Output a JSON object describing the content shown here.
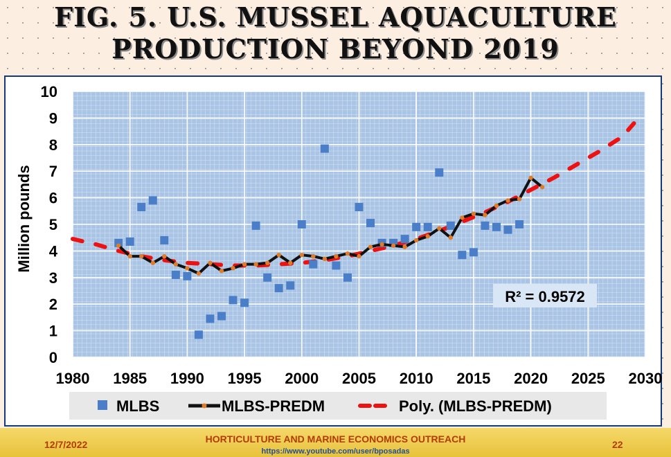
{
  "slide": {
    "title_line1": "FIG. 5. U.S. MUSSEL AQUACULTURE",
    "title_line2": "PRODUCTION BEYOND 2019"
  },
  "footer": {
    "date": "12/7/2022",
    "outreach": "HORTICULTURE AND MARINE ECONOMICS OUTREACH",
    "url": "https://www.youtube.com/user/bposadas",
    "page": "22"
  },
  "chart_data": {
    "type": "scatter",
    "ylabel": "Million pounds",
    "xlim": [
      1980,
      2030
    ],
    "ylim": [
      0,
      10
    ],
    "x_ticks": [
      "1980",
      "1985",
      "1990",
      "1995",
      "2000",
      "2005",
      "2010",
      "2015",
      "2020",
      "2025",
      "2030"
    ],
    "y_ticks": [
      "0",
      "1",
      "2",
      "3",
      "4",
      "5",
      "6",
      "7",
      "8",
      "9",
      "10"
    ],
    "r2_label": "R² = 0.9572",
    "grid": true,
    "legend_position": "bottom",
    "colors": {
      "mlbs": "#4a7ec8",
      "predm_line": "#111111",
      "predm_marker": "#e07b2a",
      "poly": "#ee1111",
      "plot_bg": "#a9c4e4"
    },
    "series": [
      {
        "name": "MLBS",
        "style": "markers",
        "points": [
          [
            1984,
            4.3
          ],
          [
            1985,
            4.35
          ],
          [
            1986,
            5.65
          ],
          [
            1987,
            5.9
          ],
          [
            1988,
            4.4
          ],
          [
            1989,
            3.1
          ],
          [
            1990,
            3.05
          ],
          [
            1991,
            0.85
          ],
          [
            1992,
            1.45
          ],
          [
            1993,
            1.55
          ],
          [
            1994,
            2.15
          ],
          [
            1995,
            2.05
          ],
          [
            1996,
            4.95
          ],
          [
            1997,
            3.0
          ],
          [
            1998,
            2.6
          ],
          [
            1999,
            2.7
          ],
          [
            2000,
            5.0
          ],
          [
            2001,
            3.5
          ],
          [
            2002,
            7.85
          ],
          [
            2003,
            3.45
          ],
          [
            2004,
            3.0
          ],
          [
            2005,
            5.65
          ],
          [
            2006,
            5.05
          ],
          [
            2007,
            4.3
          ],
          [
            2008,
            4.3
          ],
          [
            2009,
            4.45
          ],
          [
            2010,
            4.9
          ],
          [
            2011,
            4.9
          ],
          [
            2012,
            6.95
          ],
          [
            2013,
            4.95
          ],
          [
            2014,
            3.85
          ],
          [
            2015,
            3.95
          ],
          [
            2016,
            4.95
          ],
          [
            2017,
            4.9
          ],
          [
            2018,
            4.8
          ],
          [
            2019,
            5.0
          ]
        ]
      },
      {
        "name": "MLBS-PREDM",
        "style": "line-markers",
        "points": [
          [
            1984,
            4.2
          ],
          [
            1985,
            3.8
          ],
          [
            1986,
            3.8
          ],
          [
            1987,
            3.55
          ],
          [
            1988,
            3.8
          ],
          [
            1989,
            3.5
          ],
          [
            1990,
            3.35
          ],
          [
            1991,
            3.15
          ],
          [
            1992,
            3.55
          ],
          [
            1993,
            3.25
          ],
          [
            1994,
            3.35
          ],
          [
            1995,
            3.5
          ],
          [
            1996,
            3.5
          ],
          [
            1997,
            3.55
          ],
          [
            1998,
            3.85
          ],
          [
            1999,
            3.55
          ],
          [
            2000,
            3.85
          ],
          [
            2001,
            3.8
          ],
          [
            2002,
            3.7
          ],
          [
            2003,
            3.8
          ],
          [
            2004,
            3.9
          ],
          [
            2005,
            3.8
          ],
          [
            2006,
            4.15
          ],
          [
            2007,
            4.25
          ],
          [
            2008,
            4.2
          ],
          [
            2009,
            4.15
          ],
          [
            2010,
            4.4
          ],
          [
            2011,
            4.55
          ],
          [
            2012,
            4.85
          ],
          [
            2013,
            4.5
          ],
          [
            2014,
            5.25
          ],
          [
            2015,
            5.4
          ],
          [
            2016,
            5.35
          ],
          [
            2017,
            5.7
          ],
          [
            2018,
            5.9
          ],
          [
            2019,
            5.95
          ],
          [
            2020,
            6.75
          ],
          [
            2021,
            6.4
          ]
        ]
      },
      {
        "name": "Poly. (MLBS-PREDM)",
        "style": "trendline",
        "points": [
          [
            1980,
            4.45
          ],
          [
            1982,
            4.25
          ],
          [
            1984,
            4.0
          ],
          [
            1986,
            3.8
          ],
          [
            1988,
            3.65
          ],
          [
            1990,
            3.55
          ],
          [
            1992,
            3.5
          ],
          [
            1994,
            3.45
          ],
          [
            1996,
            3.45
          ],
          [
            1998,
            3.5
          ],
          [
            2000,
            3.55
          ],
          [
            2002,
            3.65
          ],
          [
            2004,
            3.8
          ],
          [
            2006,
            4.0
          ],
          [
            2008,
            4.2
          ],
          [
            2010,
            4.45
          ],
          [
            2012,
            4.75
          ],
          [
            2014,
            5.1
          ],
          [
            2016,
            5.45
          ],
          [
            2018,
            5.85
          ],
          [
            2020,
            6.3
          ],
          [
            2022,
            6.75
          ],
          [
            2024,
            7.25
          ],
          [
            2026,
            7.75
          ],
          [
            2028,
            8.3
          ],
          [
            2029,
            8.8
          ]
        ]
      }
    ]
  }
}
